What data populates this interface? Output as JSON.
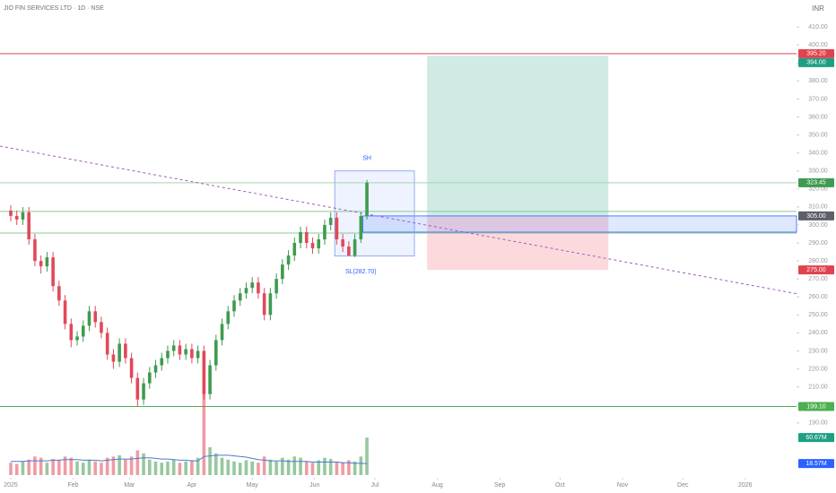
{
  "chart_data": {
    "type": "candlestick",
    "title": "JIO FIN SERVICES LTD · 1D · NSE",
    "currency": "INR",
    "xlim": [
      -5.35,
      390.5
    ],
    "xticks": [
      {
        "value": 0,
        "label": "2025"
      },
      {
        "value": 31,
        "label": "Feb"
      },
      {
        "value": 59,
        "label": "Mar"
      },
      {
        "value": 90,
        "label": "Apr"
      },
      {
        "value": 120,
        "label": "May"
      },
      {
        "value": 151,
        "label": "Jun"
      },
      {
        "value": 181,
        "label": "Jul"
      },
      {
        "value": 212,
        "label": "Aug"
      },
      {
        "value": 243,
        "label": "Sep"
      },
      {
        "value": 273,
        "label": "Oct"
      },
      {
        "value": 304,
        "label": "Nov"
      },
      {
        "value": 334,
        "label": "Dec"
      },
      {
        "value": 365,
        "label": "2026"
      }
    ],
    "ylim": [
      161,
      425
    ],
    "yticks": [
      {
        "value": 190,
        "label": "190.00"
      },
      {
        "value": 200,
        "label": "200.00"
      },
      {
        "value": 210,
        "label": "210.00"
      },
      {
        "value": 220,
        "label": "220.00"
      },
      {
        "value": 230,
        "label": "230.00"
      },
      {
        "value": 240,
        "label": "240.00"
      },
      {
        "value": 250,
        "label": "250.00"
      },
      {
        "value": 260,
        "label": "260.00"
      },
      {
        "value": 270,
        "label": "270.00"
      },
      {
        "value": 280,
        "label": "280.00"
      },
      {
        "value": 290,
        "label": "290.00"
      },
      {
        "value": 300,
        "label": "300.00"
      },
      {
        "value": 310,
        "label": "310.00"
      },
      {
        "value": 320,
        "label": "320.00"
      },
      {
        "value": 330,
        "label": "330.00"
      },
      {
        "value": 340,
        "label": "340.00"
      },
      {
        "value": 350,
        "label": "350.00"
      },
      {
        "value": 360,
        "label": "360.00"
      },
      {
        "value": 370,
        "label": "370.00"
      },
      {
        "value": 380,
        "label": "380.00"
      },
      {
        "value": 390,
        "label": "390.00"
      },
      {
        "value": 400,
        "label": "400.00"
      },
      {
        "value": 410,
        "label": "410.00"
      }
    ],
    "up_color": "#3f9b4f",
    "down_color": "#e2485a",
    "x": [
      0,
      3,
      6,
      9,
      12,
      15,
      18,
      21,
      24,
      27,
      30,
      33,
      36,
      39,
      42,
      45,
      48,
      51,
      54,
      57,
      60,
      63,
      66,
      69,
      72,
      75,
      78,
      81,
      84,
      87,
      90,
      93,
      96,
      99,
      102,
      105,
      108,
      111,
      114,
      117,
      120,
      123,
      126,
      129,
      132,
      135,
      138,
      141,
      144,
      147,
      150,
      153,
      156,
      159,
      162,
      165,
      168,
      171,
      174,
      177
    ],
    "open": [
      308,
      305,
      303,
      307,
      292,
      280,
      277,
      282,
      266,
      258,
      245,
      236,
      238,
      244,
      252,
      246,
      240,
      228,
      224,
      234,
      226,
      215,
      203,
      212,
      218,
      222,
      226,
      230,
      233,
      228,
      231,
      226,
      230,
      206,
      222,
      236,
      245,
      252,
      258,
      262,
      265,
      268,
      262,
      250,
      262,
      270,
      278,
      283,
      290,
      296,
      290,
      287,
      292,
      300,
      304,
      292,
      288,
      283,
      292,
      305
    ],
    "high": [
      311,
      308,
      310,
      310,
      295,
      283,
      285,
      285,
      269,
      261,
      248,
      241,
      247,
      255,
      255,
      249,
      243,
      231,
      237,
      237,
      229,
      218,
      215,
      221,
      225,
      229,
      233,
      236,
      236,
      234,
      234,
      233,
      233,
      225,
      239,
      248,
      255,
      261,
      265,
      268,
      271,
      271,
      265,
      265,
      273,
      281,
      286,
      293,
      299,
      299,
      293,
      295,
      303,
      307,
      307,
      295,
      291,
      295,
      307,
      325
    ],
    "low": [
      302,
      300,
      300,
      289,
      277,
      273,
      274,
      263,
      255,
      242,
      232,
      233,
      235,
      241,
      243,
      237,
      225,
      220,
      221,
      223,
      212,
      199,
      200,
      209,
      215,
      219,
      223,
      227,
      225,
      225,
      223,
      223,
      203,
      203,
      219,
      233,
      242,
      249,
      255,
      259,
      262,
      259,
      247,
      247,
      259,
      267,
      275,
      280,
      287,
      287,
      284,
      284,
      289,
      297,
      289,
      285,
      282.7,
      282,
      290,
      303
    ],
    "close": [
      305,
      303,
      307,
      292,
      280,
      277,
      282,
      266,
      258,
      245,
      236,
      238,
      244,
      252,
      246,
      240,
      228,
      224,
      234,
      226,
      215,
      203,
      212,
      218,
      222,
      226,
      230,
      233,
      228,
      231,
      226,
      230,
      206,
      222,
      236,
      245,
      252,
      258,
      262,
      265,
      268,
      262,
      250,
      262,
      270,
      278,
      283,
      290,
      296,
      290,
      287,
      292,
      300,
      304,
      292,
      288,
      283,
      292,
      305,
      323.45
    ],
    "volume": [
      20,
      18,
      22,
      25,
      30,
      28,
      20,
      26,
      24,
      30,
      28,
      22,
      20,
      25,
      22,
      20,
      28,
      30,
      32,
      25,
      30,
      40,
      35,
      25,
      22,
      20,
      22,
      25,
      20,
      22,
      24,
      28,
      195,
      45,
      35,
      28,
      25,
      22,
      20,
      24,
      22,
      20,
      30,
      25,
      22,
      28,
      25,
      30,
      28,
      22,
      20,
      24,
      28,
      26,
      22,
      20,
      24,
      22,
      30,
      60.67
    ],
    "volume_ma": [
      22,
      22,
      22,
      23,
      23,
      23,
      23,
      24,
      24,
      25,
      25,
      25,
      24,
      24,
      24,
      23,
      24,
      25,
      26,
      26,
      26,
      27,
      28,
      28,
      27,
      26,
      26,
      25,
      24,
      24,
      23,
      23,
      30,
      31,
      32,
      32,
      32,
      31,
      30,
      29,
      27,
      25,
      24,
      23,
      23,
      23,
      22,
      22,
      22,
      22,
      21,
      21,
      21,
      21,
      21,
      20,
      20,
      19,
      19,
      18.57
    ],
    "volume_ma_color": "#4a7bd0",
    "volume_ylim": [
      0,
      100
    ],
    "hlines": [
      {
        "value": 395.2,
        "color": "#e0434f"
      },
      {
        "value": 323.45,
        "color": "#a7d3ad"
      },
      {
        "value": 307.5,
        "color": "#8cc896"
      },
      {
        "value": 295.5,
        "color": "#8cc896"
      },
      {
        "value": 199.1,
        "color": "#4caf50"
      }
    ],
    "price_tags": [
      {
        "value": 395.2,
        "label": "395.20",
        "color": "#e0434f"
      },
      {
        "value": 394,
        "label": "394.00",
        "color": "#1e9f83"
      },
      {
        "value": 323.45,
        "label": "323.45",
        "color": "#3f9b4f"
      },
      {
        "value": 305,
        "label": "305.00",
        "color": "#5d6068"
      },
      {
        "value": 275,
        "label": "275.00",
        "color": "#e0434f"
      },
      {
        "value": 199.1,
        "label": "199.10",
        "color": "#4caf50"
      }
    ],
    "volume_tags": [
      {
        "value": 60.67,
        "label": "60.67M",
        "color": "#1e9f83"
      },
      {
        "value": 18.57,
        "label": "18.57M",
        "color": "#2962ff"
      }
    ],
    "zone": {
      "x": [
        175,
        390.5
      ],
      "y": [
        296,
        305
      ]
    },
    "box": {
      "x": [
        161,
        200.6
      ],
      "y": [
        282.7,
        330
      ]
    },
    "position": {
      "x": [
        206.9,
        297
      ],
      "entry": 305,
      "target": 394,
      "stop": 275
    },
    "trendline": {
      "x": [
        -5.35,
        390.5
      ],
      "y": [
        343.8,
        261.8
      ]
    },
    "annotations": [
      {
        "text": "SH",
        "x": 177,
        "y": 337
      },
      {
        "text": "SL(282.70)",
        "x": 174,
        "y": 274
      }
    ]
  }
}
